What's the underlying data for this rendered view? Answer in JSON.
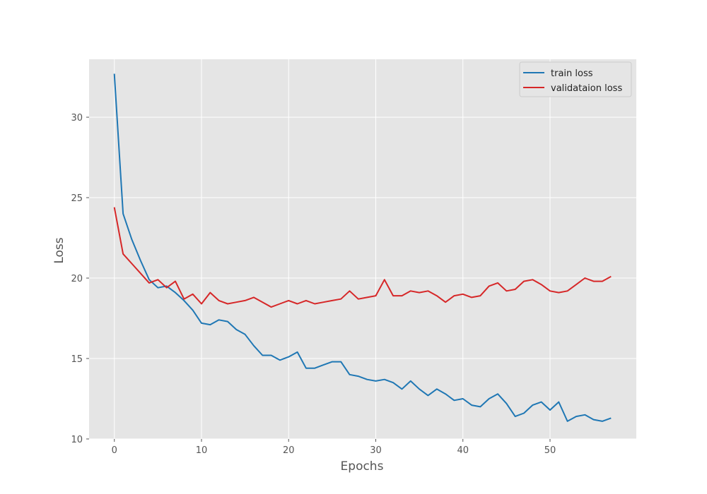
{
  "chart_data": {
    "type": "line",
    "title": "",
    "xlabel": "Epochs",
    "ylabel": "Loss",
    "xlim": [
      -2.9,
      59.9
    ],
    "ylim": [
      10,
      33.6
    ],
    "xticks": [
      0,
      10,
      20,
      30,
      40,
      50
    ],
    "yticks": [
      10,
      15,
      20,
      25,
      30
    ],
    "grid": true,
    "legend_position": "top-right",
    "background_color": "#e5e5e5",
    "grid_color": "#ffffff",
    "series": [
      {
        "name": "train loss",
        "color": "#1f77b4",
        "x": [
          0,
          1,
          2,
          3,
          4,
          5,
          6,
          7,
          8,
          9,
          10,
          11,
          12,
          13,
          14,
          15,
          16,
          17,
          18,
          19,
          20,
          21,
          22,
          23,
          24,
          25,
          26,
          27,
          28,
          29,
          30,
          31,
          32,
          33,
          34,
          35,
          36,
          37,
          38,
          39,
          40,
          41,
          42,
          43,
          44,
          45,
          46,
          47,
          48,
          49,
          50,
          51,
          52,
          53,
          54,
          55,
          56,
          57
        ],
        "y": [
          32.7,
          24.0,
          22.4,
          21.1,
          19.9,
          19.4,
          19.5,
          19.1,
          18.6,
          18.0,
          17.2,
          17.1,
          17.4,
          17.3,
          16.8,
          16.5,
          15.8,
          15.2,
          15.2,
          14.9,
          15.1,
          15.4,
          14.4,
          14.4,
          14.6,
          14.8,
          14.8,
          14.0,
          13.9,
          13.7,
          13.6,
          13.7,
          13.5,
          13.1,
          13.6,
          13.1,
          12.7,
          13.1,
          12.8,
          12.4,
          12.5,
          12.1,
          12.0,
          12.5,
          12.8,
          12.2,
          11.4,
          11.6,
          12.1,
          12.3,
          11.8,
          12.3,
          11.1,
          11.4,
          11.5,
          11.2,
          11.1,
          11.3
        ]
      },
      {
        "name": "validataion loss",
        "color": "#d62728",
        "x": [
          0,
          1,
          2,
          3,
          4,
          5,
          6,
          7,
          8,
          9,
          10,
          11,
          12,
          13,
          14,
          15,
          16,
          17,
          18,
          19,
          20,
          21,
          22,
          23,
          24,
          25,
          26,
          27,
          28,
          29,
          30,
          31,
          32,
          33,
          34,
          35,
          36,
          37,
          38,
          39,
          40,
          41,
          42,
          43,
          44,
          45,
          46,
          47,
          48,
          49,
          50,
          51,
          52,
          53,
          54,
          55,
          56,
          57
        ],
        "y": [
          24.4,
          21.5,
          20.9,
          20.3,
          19.7,
          19.9,
          19.4,
          19.8,
          18.7,
          19.0,
          18.4,
          19.1,
          18.6,
          18.4,
          18.5,
          18.6,
          18.8,
          18.5,
          18.2,
          18.4,
          18.6,
          18.4,
          18.6,
          18.4,
          18.5,
          18.6,
          18.7,
          19.2,
          18.7,
          18.8,
          18.9,
          19.9,
          18.9,
          18.9,
          19.2,
          19.1,
          19.2,
          18.9,
          18.5,
          18.9,
          19.0,
          18.8,
          18.9,
          19.5,
          19.7,
          19.2,
          19.3,
          19.8,
          19.9,
          19.6,
          19.2,
          19.1,
          19.2,
          19.6,
          20.0,
          19.8,
          19.8,
          20.1
        ]
      }
    ]
  }
}
